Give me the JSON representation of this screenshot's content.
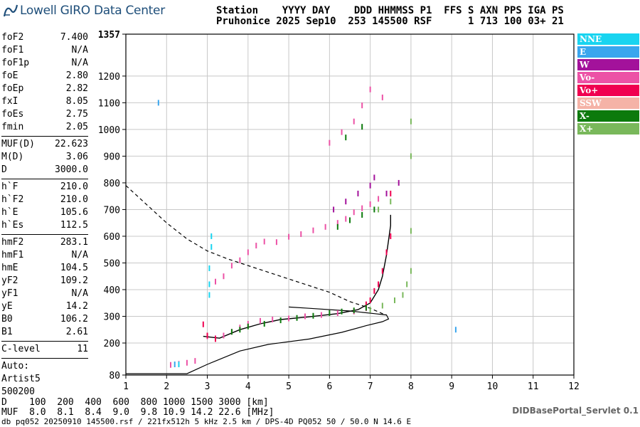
{
  "header": {
    "logo": "Lowell GIRO Data Center",
    "line1": "Station    YYYY DAY    DDD HHMMSS P1  FFS S AXN PPS IGA PS",
    "line2": "Pruhonice 2025 Sep10  253 145500 RSF      1 713 100 03+ 21"
  },
  "params": {
    "group1": [
      {
        "k": "foF2",
        "v": "7.400"
      },
      {
        "k": "foF1",
        "v": "N/A"
      },
      {
        "k": "foF1p",
        "v": "N/A"
      },
      {
        "k": "foE",
        "v": "2.80"
      },
      {
        "k": "foEp",
        "v": "2.82"
      },
      {
        "k": "fxI",
        "v": "8.05"
      },
      {
        "k": "foEs",
        "v": "2.75"
      },
      {
        "k": "fmin",
        "v": "2.05"
      }
    ],
    "group2": [
      {
        "k": "MUF(D)",
        "v": "22.623"
      },
      {
        "k": "M(D)",
        "v": "3.06"
      },
      {
        "k": "D",
        "v": "3000.0"
      }
    ],
    "group3": [
      {
        "k": "h`F",
        "v": "210.0"
      },
      {
        "k": "h`F2",
        "v": "210.0"
      },
      {
        "k": "h`E",
        "v": "105.6"
      },
      {
        "k": "h`Es",
        "v": "112.5"
      }
    ],
    "group4": [
      {
        "k": "hmF2",
        "v": "283.1"
      },
      {
        "k": "hmF1",
        "v": "N/A"
      },
      {
        "k": "hmE",
        "v": "104.5"
      },
      {
        "k": "yF2",
        "v": "109.2"
      },
      {
        "k": "yF1",
        "v": "N/A"
      },
      {
        "k": "yE",
        "v": "14.2"
      },
      {
        "k": "B0",
        "v": "106.2"
      },
      {
        "k": "B1",
        "v": "2.61"
      }
    ],
    "group5": [
      {
        "k": "C-level",
        "v": "11"
      }
    ],
    "auto": [
      "Auto:",
      "Artist5",
      "500200"
    ]
  },
  "legend": [
    {
      "label": "NNE",
      "color": "#19d4f0"
    },
    {
      "label": "E",
      "color": "#3aa6ee"
    },
    {
      "label": "W",
      "color": "#a3129b"
    },
    {
      "label": "Vo-",
      "color": "#ec52a6"
    },
    {
      "label": "Vo+",
      "color": "#f00050"
    },
    {
      "label": "SSW",
      "color": "#f5b3a7"
    },
    {
      "label": "X-",
      "color": "#0c7a0c"
    },
    {
      "label": "X+",
      "color": "#79b85b"
    }
  ],
  "bottom": {
    "d_row": "D    100  200  400  600  800 1000 1500 3000 [km]",
    "muf_row": "MUF  8.0  8.1  8.4  9.0  9.8 10.9 14.2 22.6 [MHz]"
  },
  "footer": "db pq052 20250910 145500.rsf / 221fx512h 5 kHz 2.5 km / DPS-4D PQ052 50 / 50.0 N 14.6 E",
  "servlet": "DIDBasePortal_Servlet 0.1",
  "chart_data": {
    "type": "scatter",
    "xlim": [
      1,
      12
    ],
    "ylim": [
      80,
      1357
    ],
    "x_ticks": [
      1,
      2,
      3,
      4,
      5,
      6,
      7,
      8,
      9,
      10,
      11,
      12
    ],
    "y_ticks": [
      80,
      200,
      300,
      400,
      500,
      600,
      700,
      800,
      900,
      1000,
      1100,
      1200,
      1357
    ],
    "grid": true,
    "series": [
      {
        "name": "Vo-",
        "color": "#ec52a6",
        "points": [
          [
            2.1,
            118
          ],
          [
            2.3,
            122
          ],
          [
            2.5,
            126
          ],
          [
            2.7,
            133
          ],
          [
            3.0,
            225
          ],
          [
            3.2,
            218
          ],
          [
            3.4,
            228
          ],
          [
            3.6,
            242
          ],
          [
            3.8,
            258
          ],
          [
            4.0,
            272
          ],
          [
            4.3,
            283
          ],
          [
            4.6,
            288
          ],
          [
            5.0,
            292
          ],
          [
            5.4,
            300
          ],
          [
            5.8,
            305
          ],
          [
            6.2,
            312
          ],
          [
            6.6,
            318
          ],
          [
            6.9,
            330
          ],
          [
            3.2,
            430
          ],
          [
            3.4,
            450
          ],
          [
            3.6,
            490
          ],
          [
            3.8,
            510
          ],
          [
            4.0,
            540
          ],
          [
            4.2,
            565
          ],
          [
            4.4,
            580
          ],
          [
            4.7,
            578
          ],
          [
            5.0,
            598
          ],
          [
            5.3,
            608
          ],
          [
            5.6,
            622
          ],
          [
            5.9,
            635
          ],
          [
            6.2,
            650
          ],
          [
            6.4,
            665
          ],
          [
            6.6,
            690
          ],
          [
            6.8,
            705
          ],
          [
            7.0,
            720
          ],
          [
            7.2,
            740
          ],
          [
            6.0,
            950
          ],
          [
            6.3,
            990
          ],
          [
            6.6,
            1030
          ],
          [
            6.8,
            1090
          ],
          [
            7.0,
            1150
          ],
          [
            7.3,
            1120
          ]
        ]
      },
      {
        "name": "Vo+",
        "color": "#f00050",
        "points": [
          [
            2.9,
            270
          ],
          [
            3.0,
            228
          ],
          [
            3.2,
            215
          ],
          [
            6.9,
            345
          ],
          [
            7.0,
            360
          ],
          [
            7.1,
            395
          ],
          [
            7.2,
            420
          ],
          [
            7.3,
            470
          ],
          [
            7.4,
            540
          ],
          [
            7.5,
            600
          ],
          [
            7.5,
            760
          ]
        ]
      },
      {
        "name": "W",
        "color": "#a3129b",
        "points": [
          [
            6.1,
            700
          ],
          [
            6.4,
            730
          ],
          [
            6.7,
            760
          ],
          [
            7.0,
            790
          ],
          [
            7.1,
            820
          ],
          [
            7.4,
            760
          ],
          [
            7.7,
            800
          ]
        ]
      },
      {
        "name": "X-",
        "color": "#0c7a0c",
        "points": [
          [
            3.6,
            242
          ],
          [
            3.8,
            250
          ],
          [
            4.0,
            262
          ],
          [
            4.4,
            272
          ],
          [
            4.8,
            285
          ],
          [
            5.2,
            294
          ],
          [
            5.6,
            302
          ],
          [
            6.0,
            312
          ],
          [
            6.3,
            318
          ],
          [
            6.6,
            322
          ],
          [
            6.9,
            332
          ],
          [
            6.2,
            635
          ],
          [
            6.5,
            660
          ],
          [
            6.8,
            680
          ],
          [
            7.1,
            700
          ],
          [
            6.4,
            970
          ],
          [
            6.8,
            1010
          ]
        ]
      },
      {
        "name": "X+",
        "color": "#79b85b",
        "points": [
          [
            7.0,
            325
          ],
          [
            7.3,
            340
          ],
          [
            7.6,
            360
          ],
          [
            7.8,
            380
          ],
          [
            7.9,
            420
          ],
          [
            8.0,
            470
          ],
          [
            8.0,
            620
          ],
          [
            8.0,
            900
          ],
          [
            8.0,
            1030
          ],
          [
            7.2,
            700
          ],
          [
            7.5,
            730
          ]
        ]
      },
      {
        "name": "NNE",
        "color": "#19d4f0",
        "points": [
          [
            3.05,
            380
          ],
          [
            3.05,
            420
          ],
          [
            3.05,
            480
          ],
          [
            3.1,
            560
          ],
          [
            3.1,
            600
          ],
          [
            2.3,
            120
          ]
        ]
      },
      {
        "name": "E",
        "color": "#3aa6ee",
        "points": [
          [
            1.8,
            1100
          ],
          [
            2.2,
            120
          ],
          [
            9.1,
            250
          ]
        ]
      }
    ],
    "profile_solid": [
      [
        1.0,
        85
      ],
      [
        2.5,
        85
      ],
      [
        3.0,
        120
      ],
      [
        3.8,
        170
      ],
      [
        4.5,
        195
      ],
      [
        5.5,
        215
      ],
      [
        6.3,
        240
      ],
      [
        6.9,
        265
      ],
      [
        7.3,
        280
      ],
      [
        7.45,
        290
      ],
      [
        7.4,
        305
      ],
      [
        7.1,
        310
      ],
      [
        6.5,
        320
      ],
      [
        5.5,
        330
      ],
      [
        5.0,
        335
      ]
    ],
    "profile_dashed": [
      [
        1.0,
        790
      ],
      [
        1.5,
        720
      ],
      [
        2.0,
        650
      ],
      [
        2.5,
        590
      ],
      [
        3.0,
        545
      ],
      [
        3.5,
        515
      ],
      [
        4.0,
        490
      ],
      [
        5.0,
        440
      ],
      [
        6.0,
        390
      ],
      [
        6.5,
        355
      ],
      [
        7.0,
        330
      ],
      [
        7.3,
        310
      ],
      [
        7.4,
        305
      ]
    ],
    "trace_line": [
      [
        2.9,
        225
      ],
      [
        3.3,
        218
      ],
      [
        3.8,
        250
      ],
      [
        4.3,
        272
      ],
      [
        4.8,
        288
      ],
      [
        5.5,
        298
      ],
      [
        6.2,
        310
      ],
      [
        6.7,
        325
      ],
      [
        7.0,
        350
      ],
      [
        7.2,
        400
      ],
      [
        7.3,
        450
      ],
      [
        7.4,
        530
      ],
      [
        7.5,
        640
      ],
      [
        7.5,
        680
      ]
    ]
  }
}
